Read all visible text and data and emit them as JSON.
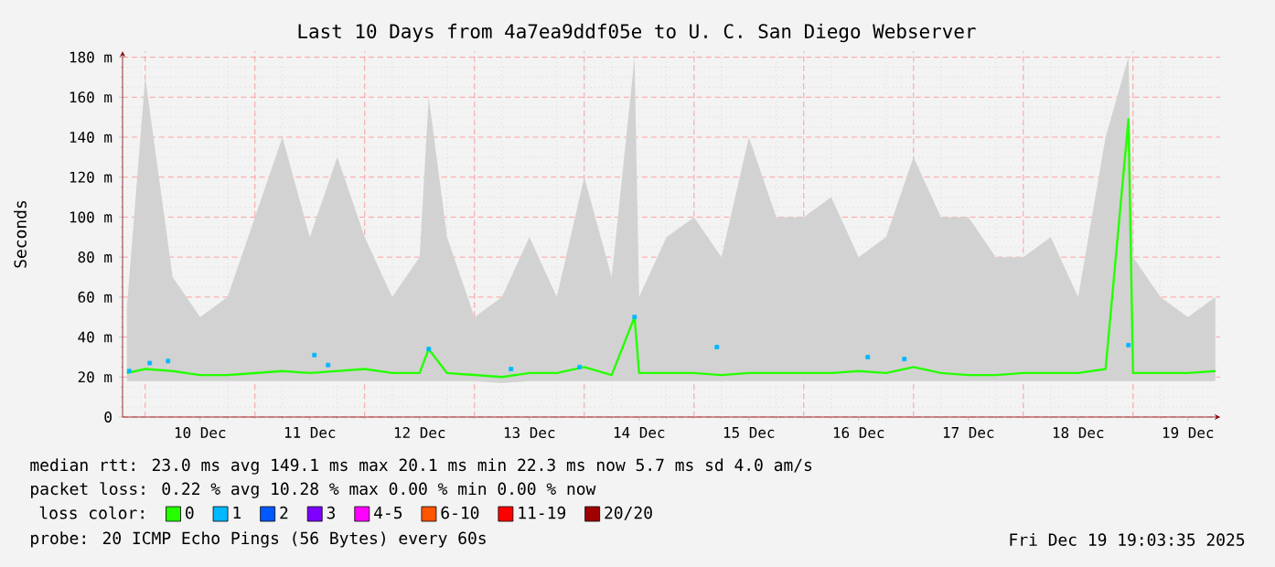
{
  "chart_data": {
    "type": "line",
    "title": "Last 10 Days from 4a7ea9ddf05e to U. C. San Diego Webserver",
    "ylabel": "Seconds",
    "annotations": [
      "median rtt:  23.0 ms avg  149.1 ms max  20.1 ms min  22.3 ms now  5.7 ms sd  4.0   am/s",
      "packet loss: 0.22 % avg  10.28 % max  0.00 % min  0.00 % now",
      "probe:        20 ICMP Echo Pings (56 Bytes) every 60s",
      "Fri Dec 19 19:03:35 2025"
    ],
    "legend_title": "loss color:",
    "legend": "bottom left",
    "grid": true,
    "xlim": [
      "2025-12-09T19:03",
      "2025-12-19T19:03"
    ],
    "ylim": [
      0,
      183
    ],
    "xticks": [
      {
        "value": "2025-12-10T00:00",
        "label": null
      },
      {
        "value": "2025-12-10T12:00",
        "label": "10 Dec"
      },
      {
        "value": "2025-12-11T00:00",
        "label": null
      },
      {
        "value": "2025-12-11T12:00",
        "label": "11 Dec"
      },
      {
        "value": "2025-12-12T00:00",
        "label": null
      },
      {
        "value": "2025-12-12T12:00",
        "label": "12 Dec"
      },
      {
        "value": "2025-12-13T00:00",
        "label": null
      },
      {
        "value": "2025-12-13T12:00",
        "label": "13 Dec"
      },
      {
        "value": "2025-12-14T00:00",
        "label": null
      },
      {
        "value": "2025-12-14T12:00",
        "label": "14 Dec"
      },
      {
        "value": "2025-12-15T00:00",
        "label": null
      },
      {
        "value": "2025-12-15T12:00",
        "label": "15 Dec"
      },
      {
        "value": "2025-12-16T00:00",
        "label": null
      },
      {
        "value": "2025-12-16T12:00",
        "label": "16 Dec"
      },
      {
        "value": "2025-12-17T00:00",
        "label": null
      },
      {
        "value": "2025-12-17T12:00",
        "label": "17 Dec"
      },
      {
        "value": "2025-12-18T00:00",
        "label": null
      },
      {
        "value": "2025-12-18T12:00",
        "label": "18 Dec"
      },
      {
        "value": "2025-12-19T00:00",
        "label": null
      },
      {
        "value": "2025-12-19T12:00",
        "label": "19 Dec"
      }
    ],
    "yticks": [
      {
        "value": 0,
        "label": "0"
      },
      {
        "value": 20,
        "label": "20 m"
      },
      {
        "value": 40,
        "label": "40 m"
      },
      {
        "value": 60,
        "label": "60 m"
      },
      {
        "value": 80,
        "label": "80 m"
      },
      {
        "value": 100,
        "label": "100 m"
      },
      {
        "value": 120,
        "label": "120 m"
      },
      {
        "value": 140,
        "label": "140 m"
      },
      {
        "value": 160,
        "label": "160 m"
      },
      {
        "value": 180,
        "label": "180 m"
      }
    ],
    "x": [
      "2025-12-09T20:00",
      "2025-12-10T00:00",
      "2025-12-10T06:00",
      "2025-12-10T12:00",
      "2025-12-10T18:00",
      "2025-12-11T00:00",
      "2025-12-11T06:00",
      "2025-12-11T12:00",
      "2025-12-11T18:00",
      "2025-12-12T00:00",
      "2025-12-12T06:00",
      "2025-12-12T12:00",
      "2025-12-12T14:00",
      "2025-12-12T18:00",
      "2025-12-13T00:00",
      "2025-12-13T06:00",
      "2025-12-13T12:00",
      "2025-12-13T18:00",
      "2025-12-14T00:00",
      "2025-12-14T06:00",
      "2025-12-14T11:00",
      "2025-12-14T12:00",
      "2025-12-14T18:00",
      "2025-12-15T00:00",
      "2025-12-15T06:00",
      "2025-12-15T12:00",
      "2025-12-15T18:00",
      "2025-12-16T00:00",
      "2025-12-16T06:00",
      "2025-12-16T12:00",
      "2025-12-16T18:00",
      "2025-12-17T00:00",
      "2025-12-17T06:00",
      "2025-12-17T12:00",
      "2025-12-17T18:00",
      "2025-12-18T00:00",
      "2025-12-18T06:00",
      "2025-12-18T12:00",
      "2025-12-18T18:00",
      "2025-12-18T23:00",
      "2025-12-19T00:00",
      "2025-12-19T06:00",
      "2025-12-19T12:00",
      "2025-12-19T18:00"
    ],
    "series": [
      {
        "name": "0",
        "color": "#26ff00",
        "values": [
          22,
          24,
          23,
          21,
          21,
          22,
          23,
          22,
          23,
          24,
          22,
          22,
          34,
          22,
          21,
          20,
          22,
          22,
          25,
          21,
          50,
          22,
          22,
          22,
          21,
          22,
          22,
          22,
          22,
          23,
          22,
          25,
          22,
          21,
          21,
          22,
          22,
          22,
          24,
          149,
          22,
          22,
          22,
          23
        ],
        "lower": [
          18,
          18,
          18,
          18,
          18,
          18,
          18,
          18,
          18,
          18,
          18,
          18,
          18,
          18,
          18,
          17,
          18,
          18,
          18,
          18,
          18,
          18,
          18,
          18,
          18,
          18,
          18,
          18,
          18,
          18,
          18,
          18,
          18,
          18,
          18,
          18,
          18,
          18,
          18,
          18,
          18,
          18,
          18,
          18
        ],
        "upper": [
          55,
          170,
          70,
          50,
          60,
          100,
          140,
          90,
          130,
          90,
          60,
          80,
          160,
          90,
          50,
          60,
          90,
          60,
          120,
          70,
          180,
          60,
          90,
          100,
          80,
          140,
          100,
          100,
          110,
          80,
          90,
          130,
          100,
          100,
          80,
          80,
          90,
          60,
          140,
          180,
          80,
          60,
          50,
          60
        ]
      },
      {
        "name": "1",
        "color": "#00b8ff",
        "type": "scatter",
        "marker": "square",
        "x": [
          "2025-12-09T20:30",
          "2025-12-10T01:00",
          "2025-12-10T05:00",
          "2025-12-11T13:00",
          "2025-12-11T16:00",
          "2025-12-12T14:00",
          "2025-12-13T08:00",
          "2025-12-13T23:00",
          "2025-12-14T11:00",
          "2025-12-15T05:00",
          "2025-12-16T14:00",
          "2025-12-16T22:00",
          "2025-12-18T23:00"
        ],
        "values": [
          23,
          27,
          28,
          31,
          26,
          34,
          24,
          25,
          50,
          35,
          30,
          29,
          36
        ]
      },
      {
        "name": "2",
        "color": "#0059ff",
        "values": [
          null,
          null,
          null,
          null,
          null,
          null,
          null,
          null,
          null,
          null,
          null,
          null,
          null,
          null,
          null,
          null,
          null,
          null,
          null,
          null,
          null,
          null,
          null,
          null,
          null,
          null,
          null,
          null,
          null,
          null,
          null,
          null,
          null,
          null,
          null,
          null,
          null,
          null,
          null,
          null,
          null,
          null,
          null,
          null
        ]
      },
      {
        "name": "3",
        "color": "#7e00ff",
        "values": [
          null,
          null,
          null,
          null,
          null,
          null,
          null,
          null,
          null,
          null,
          null,
          null,
          null,
          null,
          null,
          null,
          null,
          null,
          null,
          null,
          null,
          null,
          null,
          null,
          null,
          null,
          null,
          null,
          null,
          null,
          null,
          null,
          null,
          null,
          null,
          null,
          null,
          null,
          null,
          null,
          null,
          null,
          null,
          null
        ]
      },
      {
        "name": "4-5",
        "color": "#ff00ff",
        "values": [
          null,
          null,
          null,
          null,
          null,
          null,
          null,
          null,
          null,
          null,
          null,
          null,
          null,
          null,
          null,
          null,
          null,
          null,
          null,
          null,
          null,
          null,
          null,
          null,
          null,
          null,
          null,
          null,
          null,
          null,
          null,
          null,
          null,
          null,
          null,
          null,
          null,
          null,
          null,
          null,
          null,
          null,
          null,
          null
        ]
      },
      {
        "name": "6-10",
        "color": "#ff5500",
        "values": [
          null,
          null,
          null,
          null,
          null,
          null,
          null,
          null,
          null,
          null,
          null,
          null,
          null,
          null,
          null,
          null,
          null,
          null,
          null,
          null,
          null,
          null,
          null,
          null,
          null,
          null,
          null,
          null,
          null,
          null,
          null,
          null,
          null,
          null,
          null,
          null,
          null,
          null,
          null,
          null,
          null,
          null,
          null,
          null
        ]
      },
      {
        "name": "11-19",
        "color": "#ff0000",
        "values": [
          null,
          null,
          null,
          null,
          null,
          null,
          null,
          null,
          null,
          null,
          null,
          null,
          null,
          null,
          null,
          null,
          null,
          null,
          null,
          null,
          null,
          null,
          null,
          null,
          null,
          null,
          null,
          null,
          null,
          null,
          null,
          null,
          null,
          null,
          null,
          null,
          null,
          null,
          null,
          null,
          null,
          null,
          null,
          null
        ]
      },
      {
        "name": "20/20",
        "color": "#a10000",
        "values": [
          null,
          null,
          null,
          null,
          null,
          null,
          null,
          null,
          null,
          null,
          null,
          null,
          null,
          null,
          null,
          null,
          null,
          null,
          null,
          null,
          null,
          null,
          null,
          null,
          null,
          null,
          null,
          null,
          null,
          null,
          null,
          null,
          null,
          null,
          null,
          null,
          null,
          null,
          null,
          null,
          null,
          null,
          null,
          null
        ]
      }
    ]
  }
}
